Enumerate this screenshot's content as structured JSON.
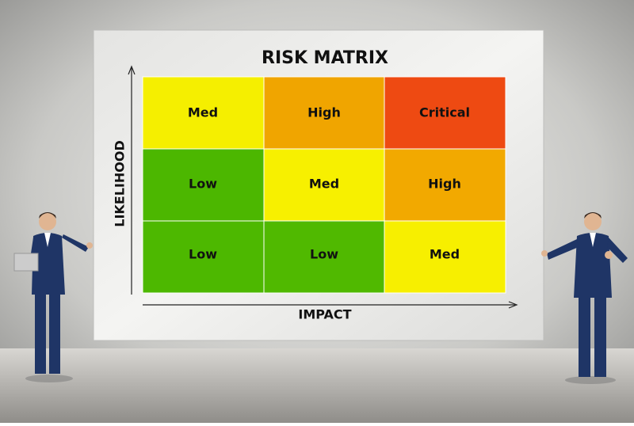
{
  "title": "RISK MATRIX",
  "y_axis_label": "LIKELIHOOD",
  "x_axis_label": "IMPACT",
  "cells": [
    [
      "Med",
      "High",
      "Critical"
    ],
    [
      "Low",
      "Med",
      "High"
    ],
    [
      "Low",
      "Low",
      "Med"
    ]
  ]
}
